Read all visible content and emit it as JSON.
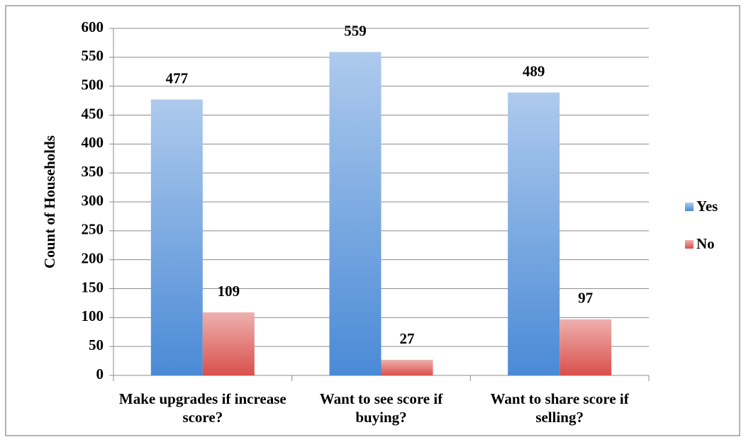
{
  "chart_data": {
    "type": "bar",
    "y_label": "Count of Households",
    "categories": [
      "Make upgrades if increase score?",
      "Want to see score if buying?",
      "Want to share score if selling?"
    ],
    "series": [
      {
        "name": "Yes",
        "color": "#4a8ad6",
        "values": [
          477,
          559,
          489
        ]
      },
      {
        "name": "No",
        "color": "#d9504c",
        "values": [
          109,
          27,
          97
        ]
      }
    ],
    "ylim": [
      0,
      600
    ],
    "yticks": [
      0,
      50,
      100,
      150,
      200,
      250,
      300,
      350,
      400,
      450,
      500,
      550,
      600
    ],
    "grid": true,
    "legend": "right"
  }
}
